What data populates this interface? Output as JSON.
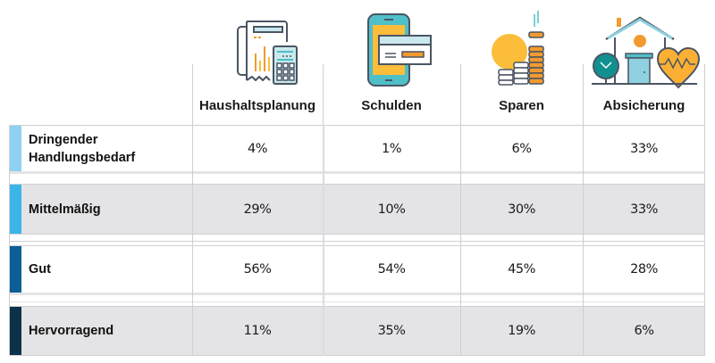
{
  "chart_data": {
    "type": "table",
    "title": "",
    "columns": [
      "Haushaltsplanung",
      "Schulden",
      "Sparen",
      "Absicherung"
    ],
    "column_icons": [
      "calculator-receipt-icon",
      "phone-credit-card-icon",
      "coins-savings-icon",
      "house-heart-insurance-icon"
    ],
    "rows": [
      {
        "label": "Dringender Handlungsbedarf",
        "label_lines": [
          "Dringender",
          "Handlungsbedarf"
        ],
        "color": "#8fd1f3",
        "values": [
          "4%",
          "1%",
          "6%",
          "33%"
        ]
      },
      {
        "label": "Mittelmäßig",
        "label_lines": [
          "Mittelmäßig"
        ],
        "color": "#3cb4e6",
        "values": [
          "29%",
          "10%",
          "30%",
          "33%"
        ]
      },
      {
        "label": "Gut",
        "label_lines": [
          "Gut"
        ],
        "color": "#0a5f95",
        "values": [
          "56%",
          "54%",
          "45%",
          "28%"
        ]
      },
      {
        "label": "Hervorragend",
        "label_lines": [
          "Hervorragend"
        ],
        "color": "#0d3149",
        "values": [
          "11%",
          "35%",
          "19%",
          "6%"
        ]
      }
    ],
    "unit": "%"
  },
  "colors": {
    "grid": "#cfcfd3",
    "band_grey": "#e4e4e7",
    "orange": "#f39a2e",
    "yellow": "#fbbd3a",
    "teal": "#4fbfc8",
    "dark_teal": "#11908f",
    "outline": "#4b5563",
    "light_blue": "#c9e9ee"
  }
}
